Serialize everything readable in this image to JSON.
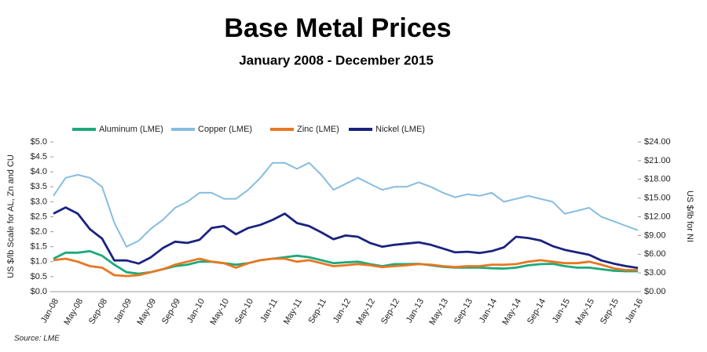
{
  "chart_data": {
    "type": "line",
    "title": "Base Metal Prices",
    "subtitle": "January 2008 - December 2015",
    "y_label": "US $/lb Scale for AL, Zn and CU",
    "y2_label": "US $/lb for NI",
    "source": "Source: LME",
    "categories": [
      "Jan-08",
      null,
      "May-08",
      null,
      "Sep-08",
      null,
      "Jan-09",
      null,
      "May-09",
      null,
      "Sep-09",
      null,
      "Jan-10",
      null,
      "May-10",
      null,
      "Sep-10",
      null,
      "Jan-11",
      null,
      "May-11",
      null,
      "Sep-11",
      null,
      "Jan-12",
      null,
      "May-12",
      null,
      "Sep-12",
      null,
      "Jan-13",
      null,
      "May-13",
      null,
      "Sep-13",
      null,
      "Jan-14",
      null,
      "May-14",
      null,
      "Sep-14",
      null,
      "Jan-15",
      null,
      "May-15",
      null,
      "Sep-15",
      null,
      "Jan-16"
    ],
    "ylim": [
      0,
      5
    ],
    "yticks": [
      {
        "value": 0,
        "label": "$0.0"
      },
      {
        "value": 0.5,
        "label": "$0.5"
      },
      {
        "value": 1,
        "label": "$1.0"
      },
      {
        "value": 1.5,
        "label": "$1.5"
      },
      {
        "value": 2,
        "label": "$2.0"
      },
      {
        "value": 2.5,
        "label": "$2.5"
      },
      {
        "value": 3,
        "label": "$3.0"
      },
      {
        "value": 3.5,
        "label": "$3.5"
      },
      {
        "value": 4,
        "label": "$4.0"
      },
      {
        "value": 4.5,
        "label": "$4.5"
      },
      {
        "value": 5,
        "label": "$5.0"
      }
    ],
    "y2lim": [
      0,
      24
    ],
    "y2ticks": [
      {
        "value": 0,
        "label": "$0.00"
      },
      {
        "value": 3,
        "label": "$3.00"
      },
      {
        "value": 6,
        "label": "$6.00"
      },
      {
        "value": 9,
        "label": "$9.00"
      },
      {
        "value": 12,
        "label": "$12.00"
      },
      {
        "value": 15,
        "label": "$15.00"
      },
      {
        "value": 18,
        "label": "$18.00"
      },
      {
        "value": 21,
        "label": "$21.00"
      },
      {
        "value": 24,
        "label": "$24.00"
      }
    ],
    "series": [
      {
        "name": "Aluminum (LME)",
        "color": "#1aaa7a",
        "values": [
          1.1,
          1.3,
          1.3,
          1.35,
          1.2,
          0.9,
          0.65,
          0.6,
          0.65,
          0.75,
          0.85,
          0.9,
          1.0,
          1.0,
          0.95,
          0.9,
          0.95,
          1.05,
          1.1,
          1.15,
          1.2,
          1.15,
          1.05,
          0.95,
          0.98,
          1.0,
          0.92,
          0.85,
          0.92,
          0.92,
          0.93,
          0.88,
          0.83,
          0.8,
          0.8,
          0.8,
          0.78,
          0.77,
          0.8,
          0.88,
          0.92,
          0.93,
          0.85,
          0.8,
          0.8,
          0.75,
          0.7,
          0.68,
          0.68
        ]
      },
      {
        "name": "Copper (LME)",
        "color": "#86bde0",
        "values": [
          3.2,
          3.8,
          3.9,
          3.8,
          3.5,
          2.3,
          1.5,
          1.7,
          2.1,
          2.4,
          2.8,
          3.0,
          3.3,
          3.3,
          3.1,
          3.1,
          3.4,
          3.8,
          4.3,
          4.3,
          4.1,
          4.3,
          3.9,
          3.4,
          3.6,
          3.8,
          3.6,
          3.4,
          3.5,
          3.5,
          3.65,
          3.5,
          3.3,
          3.15,
          3.25,
          3.2,
          3.3,
          3.0,
          3.1,
          3.2,
          3.1,
          3.0,
          2.6,
          2.7,
          2.8,
          2.5,
          2.35,
          2.2,
          2.05
        ]
      },
      {
        "name": "Zinc (LME)",
        "color": "#e87722",
        "values": [
          1.05,
          1.1,
          1.0,
          0.85,
          0.8,
          0.55,
          0.52,
          0.55,
          0.65,
          0.75,
          0.9,
          1.0,
          1.1,
          1.0,
          0.95,
          0.8,
          0.95,
          1.05,
          1.1,
          1.1,
          1.0,
          1.05,
          0.95,
          0.85,
          0.88,
          0.92,
          0.88,
          0.82,
          0.85,
          0.88,
          0.92,
          0.9,
          0.85,
          0.82,
          0.85,
          0.85,
          0.9,
          0.9,
          0.92,
          1.0,
          1.05,
          1.0,
          0.95,
          0.95,
          1.0,
          0.9,
          0.78,
          0.72,
          0.72
        ]
      },
      {
        "name": "Nickel (LME)",
        "color": "#1a237e",
        "axis": "y2",
        "values": [
          12.5,
          13.5,
          12.5,
          10,
          8.5,
          5,
          5,
          4.5,
          5.5,
          7,
          8,
          7.8,
          8.3,
          10.2,
          10.5,
          9.2,
          10.2,
          10.7,
          11.5,
          12.5,
          11,
          10.5,
          9.5,
          8.4,
          9,
          8.8,
          7.8,
          7.2,
          7.5,
          7.7,
          7.9,
          7.5,
          6.9,
          6.3,
          6.4,
          6.2,
          6.5,
          7.1,
          8.8,
          8.6,
          8.2,
          7.3,
          6.7,
          6.3,
          5.9,
          5,
          4.5,
          4.1,
          3.8
        ]
      }
    ]
  }
}
